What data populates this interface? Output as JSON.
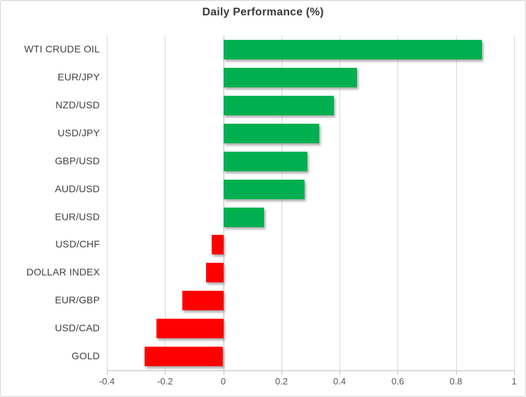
{
  "chart_data": {
    "type": "bar",
    "orientation": "horizontal",
    "title": "Daily Performance (%)",
    "categories": [
      "WTI CRUDE OIL",
      "EUR/JPY",
      "NZD/USD",
      "USD/JPY",
      "GBP/USD",
      "AUD/USD",
      "EUR/USD",
      "USD/CHF",
      "DOLLAR INDEX",
      "EUR/GBP",
      "USD/CAD",
      "GOLD"
    ],
    "values": [
      0.89,
      0.46,
      0.38,
      0.33,
      0.29,
      0.28,
      0.14,
      -0.04,
      -0.06,
      -0.14,
      -0.23,
      -0.27
    ],
    "xlabel": "",
    "ylabel": "",
    "xlim": [
      -0.4,
      1.0
    ],
    "xticks": [
      -0.4,
      -0.2,
      0,
      0.2,
      0.4,
      0.6,
      0.8,
      1
    ],
    "xtick_labels": [
      "-0.4",
      "-0.2",
      "0",
      "0.2",
      "0.4",
      "0.6",
      "0.8",
      "1"
    ],
    "grid": true,
    "legend": "none",
    "data_labels": "none",
    "colors": {
      "positive_bar": "#00B050",
      "negative_bar": "#FF0000",
      "gridline": "#D9D9D9",
      "axis_line": "#BFBFBF",
      "title_text": "#3B3B3B",
      "category_text": "#404040",
      "tick_text": "#595959"
    }
  }
}
